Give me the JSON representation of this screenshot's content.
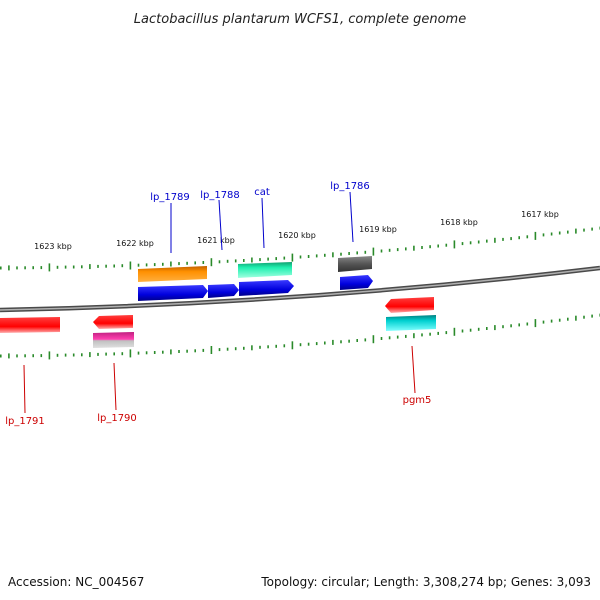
{
  "title": "Lactobacillus plantarum WCFS1, complete genome",
  "footer": {
    "accession": "Accession: NC_004567",
    "summary": "Topology: circular; Length: 3,308,274 bp; Genes: 3,093"
  },
  "colors": {
    "forward_label": "#0000cc",
    "reverse_label": "#cc0000",
    "backbone": "#8a8a8a",
    "ticks": "#2a8a2a"
  },
  "chart_data": {
    "type": "genome-map",
    "kbp_labels": [
      "1623 kbp",
      "1622 kbp",
      "1621 kbp",
      "1620 kbp",
      "1619 kbp",
      "1618 kbp",
      "1617 kbp"
    ],
    "forward_genes": [
      {
        "label": "lp_1789",
        "color": "#ff8c00"
      },
      {
        "label": "lp_1788",
        "color": "#1010e0"
      },
      {
        "label": "cat",
        "color": "#20e0a0"
      },
      {
        "label": "lp_1786",
        "color": "#606060"
      }
    ],
    "reverse_genes": [
      {
        "label": "lp_1791",
        "color": "#ff1010"
      },
      {
        "label": "lp_1790",
        "color": "#ff1010"
      },
      {
        "label": "pgm5",
        "color": "#ff1010"
      }
    ]
  }
}
